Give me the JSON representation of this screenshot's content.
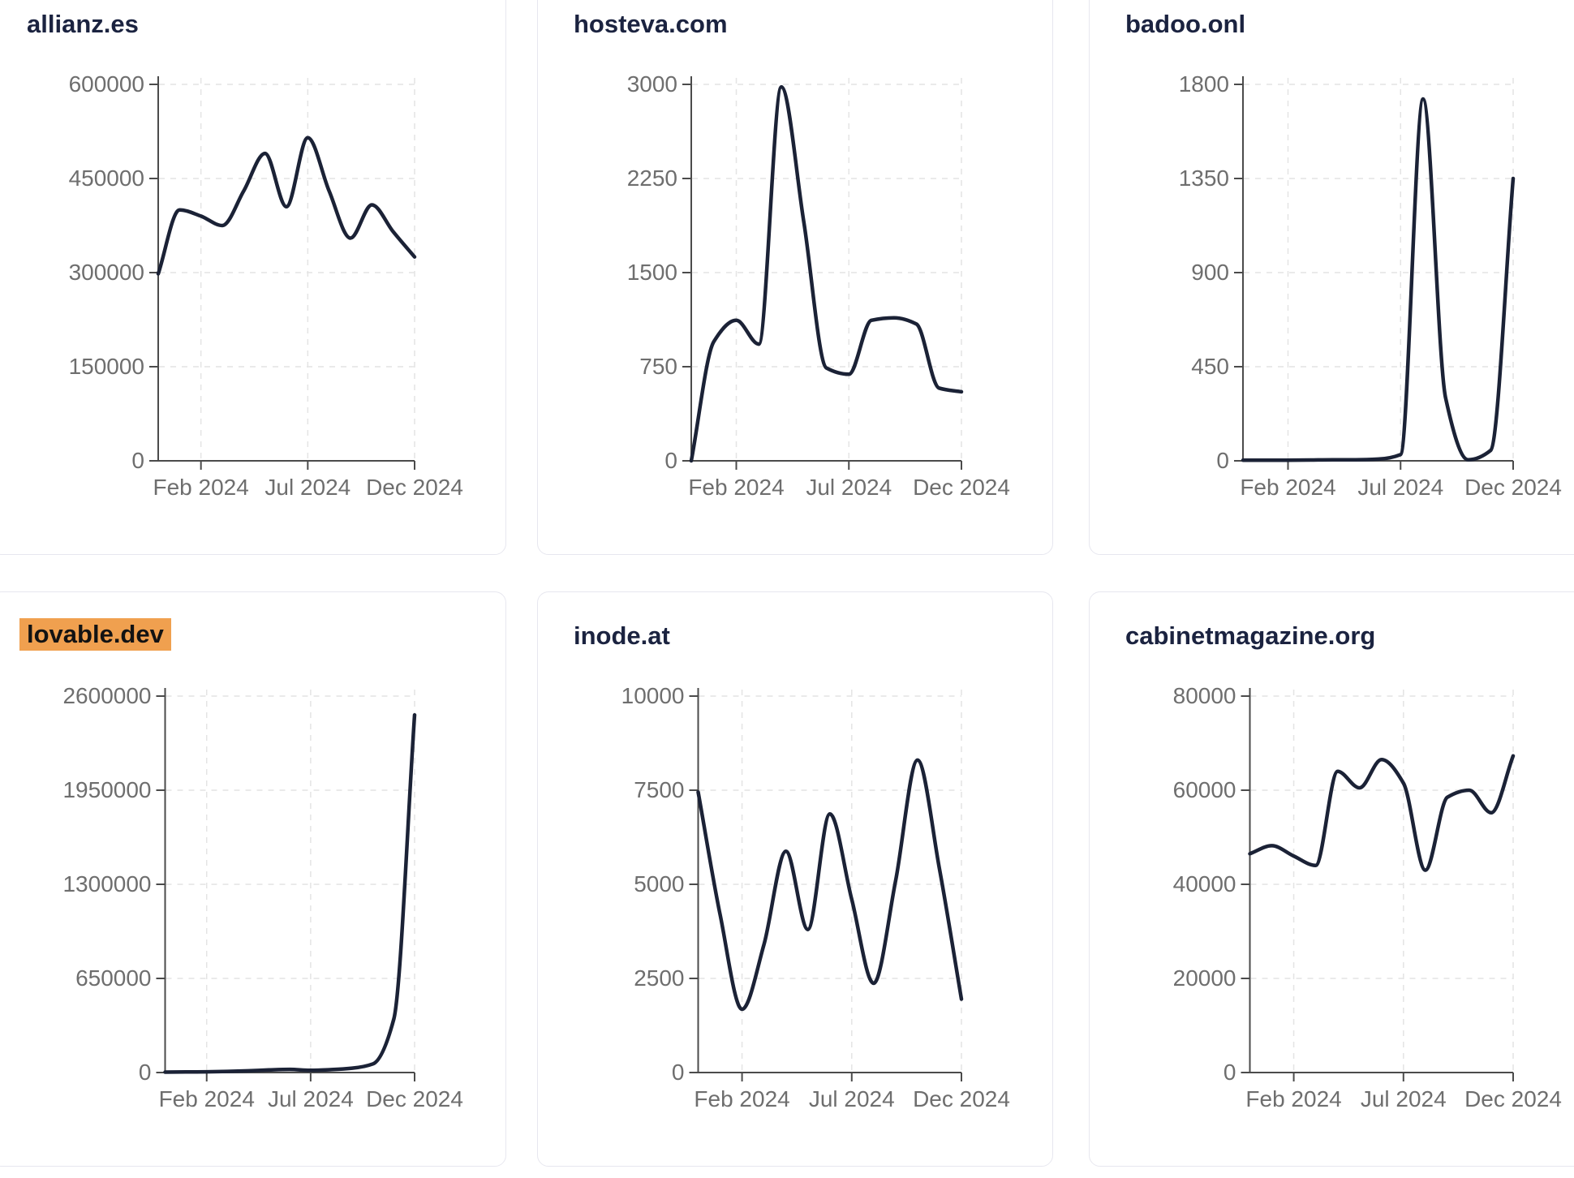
{
  "style": {
    "background": "#ffffff",
    "card_border": "#e7e7ef",
    "title_color": "#1b2340",
    "highlight_bg": "#f0a04f",
    "highlight_text": "#131313",
    "line_color": "#1b2236",
    "axis_color": "#4b4b4b",
    "tick_label_color": "#6e6e6e",
    "grid_color": "#e4e4e4"
  },
  "cards": [
    {
      "title": "allianz.es",
      "title_highlight": false
    },
    {
      "title": "hosteva.com",
      "title_highlight": false
    },
    {
      "title": "badoo.onl",
      "title_highlight": false
    },
    {
      "title": "lovable.dev",
      "title_highlight": true
    },
    {
      "title": "inode.at",
      "title_highlight": false
    },
    {
      "title": "cabinetmagazine.org",
      "title_highlight": false
    }
  ],
  "chart_data": [
    {
      "type": "line",
      "title": "allianz.es",
      "x": [
        "Dec 2023",
        "Jan 2024",
        "Feb 2024",
        "Mar 2024",
        "Apr 2024",
        "May 2024",
        "Jun 2024",
        "Jul 2024",
        "Aug 2024",
        "Sep 2024",
        "Oct 2024",
        "Nov 2024",
        "Dec 2024"
      ],
      "values": [
        298000,
        400000,
        390000,
        375000,
        430000,
        490000,
        405000,
        515000,
        430000,
        355000,
        408000,
        365000,
        325000
      ],
      "ylim": [
        0,
        600000
      ],
      "y_ticks": [
        "600000",
        "450000",
        "300000",
        "150000",
        "0"
      ],
      "x_tick_labels": [
        "Feb 2024",
        "Jul 2024",
        "Dec 2024"
      ],
      "x_tick_indices": [
        2,
        7,
        12
      ],
      "grid": "dashed",
      "legend": "none"
    },
    {
      "type": "line",
      "title": "hosteva.com",
      "x": [
        "Dec 2023",
        "Jan 2024",
        "Feb 2024",
        "Mar 2024",
        "Apr 2024",
        "May 2024",
        "Jun 2024",
        "Jul 2024",
        "Aug 2024",
        "Sep 2024",
        "Oct 2024",
        "Nov 2024",
        "Dec 2024"
      ],
      "values": [
        0,
        950,
        1120,
        930,
        2980,
        1900,
        740,
        690,
        1120,
        1140,
        1090,
        580,
        550
      ],
      "ylim": [
        0,
        3000
      ],
      "y_ticks": [
        "3000",
        "2250",
        "1500",
        "750",
        "0"
      ],
      "x_tick_labels": [
        "Feb 2024",
        "Jul 2024",
        "Dec 2024"
      ],
      "x_tick_indices": [
        2,
        7,
        12
      ],
      "grid": "dashed",
      "legend": "none"
    },
    {
      "type": "line",
      "title": "badoo.onl",
      "x": [
        "Dec 2023",
        "Jan 2024",
        "Feb 2024",
        "Mar 2024",
        "Apr 2024",
        "May 2024",
        "Jun 2024",
        "Jul 2024",
        "Aug 2024",
        "Sep 2024",
        "Oct 2024",
        "Nov 2024",
        "Dec 2024"
      ],
      "values": [
        3,
        3,
        3,
        4,
        5,
        5,
        8,
        30,
        1730,
        300,
        5,
        50,
        1350
      ],
      "ylim": [
        0,
        1800
      ],
      "y_ticks": [
        "1800",
        "1350",
        "900",
        "450",
        "0"
      ],
      "x_tick_labels": [
        "Feb 2024",
        "Jul 2024",
        "Dec 2024"
      ],
      "x_tick_indices": [
        2,
        7,
        12
      ],
      "grid": "dashed",
      "legend": "none"
    },
    {
      "type": "line",
      "title": "lovable.dev",
      "x": [
        "Dec 2023",
        "Jan 2024",
        "Feb 2024",
        "Mar 2024",
        "Apr 2024",
        "May 2024",
        "Jun 2024",
        "Jul 2024",
        "Aug 2024",
        "Sep 2024",
        "Oct 2024",
        "Nov 2024",
        "Dec 2024"
      ],
      "values": [
        3000,
        4000,
        5000,
        8000,
        12000,
        18000,
        22000,
        15000,
        20000,
        30000,
        60000,
        370000,
        2470000
      ],
      "ylim": [
        0,
        2600000
      ],
      "y_ticks": [
        "2600000",
        "1950000",
        "1300000",
        "650000",
        "0"
      ],
      "x_tick_labels": [
        "Feb 2024",
        "Jul 2024",
        "Dec 2024"
      ],
      "x_tick_indices": [
        2,
        7,
        12
      ],
      "grid": "dashed",
      "legend": "none"
    },
    {
      "type": "line",
      "title": "inode.at",
      "x": [
        "Dec 2023",
        "Jan 2024",
        "Feb 2024",
        "Mar 2024",
        "Apr 2024",
        "May 2024",
        "Jun 2024",
        "Jul 2024",
        "Aug 2024",
        "Sep 2024",
        "Oct 2024",
        "Nov 2024",
        "Dec 2024"
      ],
      "values": [
        7450,
        4200,
        1680,
        3400,
        5880,
        3800,
        6870,
        4600,
        2370,
        5100,
        8300,
        5400,
        1950
      ],
      "ylim": [
        0,
        10000
      ],
      "y_ticks": [
        "10000",
        "7500",
        "5000",
        "2500",
        "0"
      ],
      "x_tick_labels": [
        "Feb 2024",
        "Jul 2024",
        "Dec 2024"
      ],
      "x_tick_indices": [
        2,
        7,
        12
      ],
      "grid": "dashed",
      "legend": "none"
    },
    {
      "type": "line",
      "title": "cabinetmagazine.org",
      "x": [
        "Dec 2023",
        "Jan 2024",
        "Feb 2024",
        "Mar 2024",
        "Apr 2024",
        "May 2024",
        "Jun 2024",
        "Jul 2024",
        "Aug 2024",
        "Sep 2024",
        "Oct 2024",
        "Nov 2024",
        "Dec 2024"
      ],
      "values": [
        46500,
        48200,
        46000,
        44000,
        64000,
        60500,
        66500,
        61500,
        43000,
        58500,
        60000,
        55200,
        67300
      ],
      "ylim": [
        0,
        80000
      ],
      "y_ticks": [
        "80000",
        "60000",
        "40000",
        "20000",
        "0"
      ],
      "x_tick_labels": [
        "Feb 2024",
        "Jul 2024",
        "Dec 2024"
      ],
      "x_tick_indices": [
        2,
        7,
        12
      ],
      "grid": "dashed",
      "legend": "none"
    }
  ]
}
